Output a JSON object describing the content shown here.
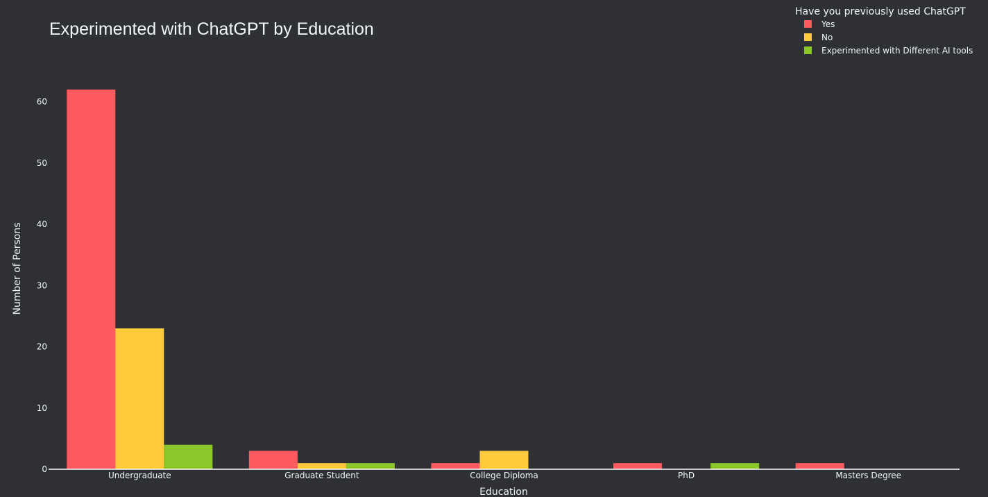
{
  "chart_data": {
    "type": "bar",
    "title": "Experimented with ChatGPT by Education",
    "xlabel": "Education",
    "ylabel": "Number of Persons",
    "categories": [
      "Undergraduate",
      "Graduate Student",
      "College Diploma",
      "PhD",
      "Masters Degree"
    ],
    "series": [
      {
        "name": "Yes",
        "color": "#ff5a5f",
        "values": [
          62,
          3,
          1,
          1,
          1
        ]
      },
      {
        "name": "No",
        "color": "#ffc93c",
        "values": [
          23,
          1,
          3,
          0,
          0
        ]
      },
      {
        "name": "Experimented with Different AI tools",
        "color": "#8cc629",
        "values": [
          4,
          1,
          0,
          1,
          0
        ]
      }
    ],
    "ylim": [
      0,
      62
    ],
    "yticks": [
      0,
      10,
      20,
      30,
      40,
      50,
      60
    ],
    "legend": {
      "title": "Have you previously used ChatGPT",
      "position": "top-right"
    },
    "grid": false,
    "background": "#2e3035",
    "text_color": "#f2f5fa"
  }
}
